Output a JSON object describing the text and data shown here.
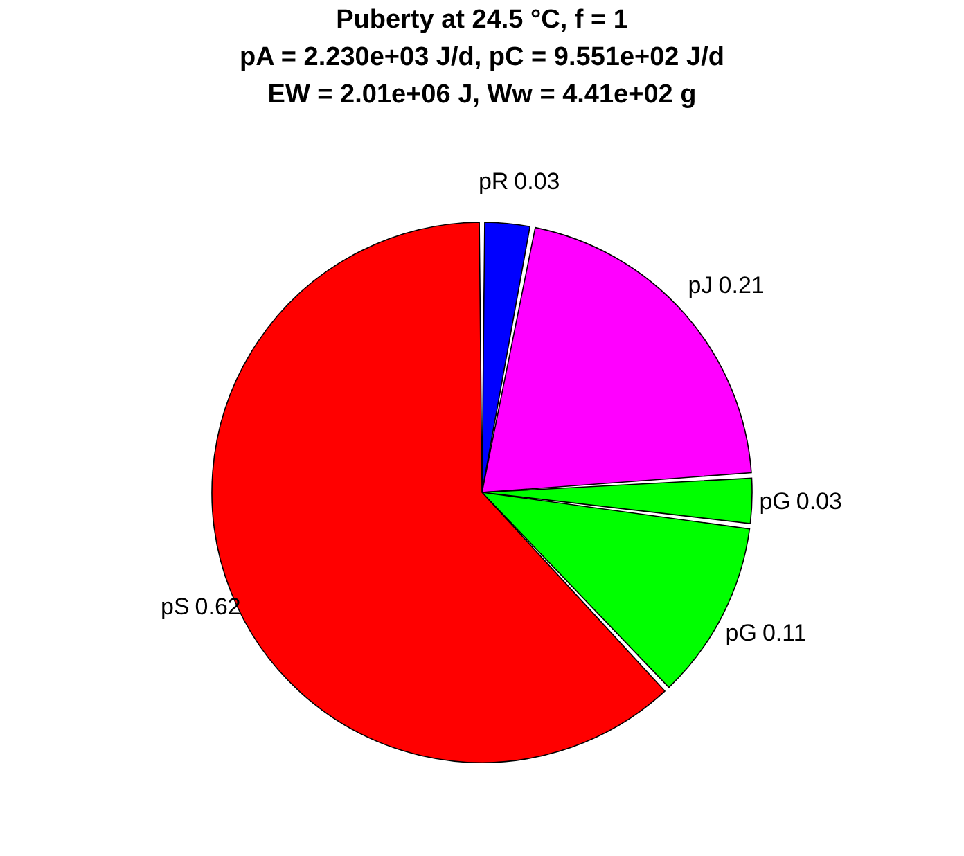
{
  "chart_data": {
    "type": "pie",
    "title": [
      "Puberty at 24.5 °C, f = 1",
      "pA = 2.230e+03 J/d,  pC = 9.551e+02 J/d",
      "EW = 2.01e+06 J, Ww = 4.41e+02 g"
    ],
    "categories": [
      "pR",
      "pJ",
      "pG",
      "pG",
      "pS"
    ],
    "values": [
      0.03,
      0.21,
      0.03,
      0.11,
      0.62
    ],
    "colors": [
      "#0000ff",
      "#ff00ff",
      "#00ff00",
      "#00ff00",
      "#ff0000"
    ],
    "data_labels": true,
    "legend": false
  }
}
